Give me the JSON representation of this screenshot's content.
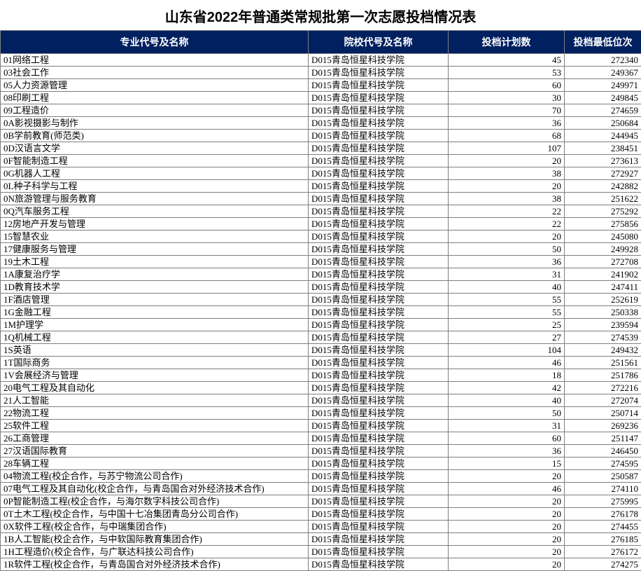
{
  "title": "山东省2022年普通类常规批第一次志愿投档情况表",
  "headers": {
    "major": "专业代号及名称",
    "school": "院校代号及名称",
    "plan": "投档计划数",
    "rank": "投档最低位次"
  },
  "school_name": "D015青岛恒星科技学院",
  "colors": {
    "header_bg": "#002060",
    "header_text": "#ffffff",
    "border": "#7f7f7f",
    "body_bg": "#ffffff",
    "text": "#000000"
  },
  "rows": [
    {
      "major": "01网络工程",
      "plan": 45,
      "rank": 272340
    },
    {
      "major": "03社会工作",
      "plan": 53,
      "rank": 249367
    },
    {
      "major": "05人力资源管理",
      "plan": 60,
      "rank": 249971
    },
    {
      "major": "08印刷工程",
      "plan": 30,
      "rank": 249845
    },
    {
      "major": "09工程造价",
      "plan": 70,
      "rank": 274659
    },
    {
      "major": "0A影视摄影与制作",
      "plan": 36,
      "rank": 250684
    },
    {
      "major": "0B学前教育(师范类)",
      "plan": 68,
      "rank": 244945
    },
    {
      "major": "0D汉语言文学",
      "plan": 107,
      "rank": 238451
    },
    {
      "major": "0F智能制造工程",
      "plan": 20,
      "rank": 273613
    },
    {
      "major": "0G机器人工程",
      "plan": 38,
      "rank": 272927
    },
    {
      "major": "0L种子科学与工程",
      "plan": 20,
      "rank": 242882
    },
    {
      "major": "0N旅游管理与服务教育",
      "plan": 38,
      "rank": 251622
    },
    {
      "major": "0Q汽车服务工程",
      "plan": 22,
      "rank": 275292
    },
    {
      "major": "12房地产开发与管理",
      "plan": 22,
      "rank": 275856
    },
    {
      "major": "15智慧农业",
      "plan": 20,
      "rank": 245080
    },
    {
      "major": "17健康服务与管理",
      "plan": 50,
      "rank": 249928
    },
    {
      "major": "19土木工程",
      "plan": 36,
      "rank": 272708
    },
    {
      "major": "1A康复治疗学",
      "plan": 31,
      "rank": 241902
    },
    {
      "major": "1D教育技术学",
      "plan": 40,
      "rank": 247411
    },
    {
      "major": "1F酒店管理",
      "plan": 55,
      "rank": 252619
    },
    {
      "major": "1G金融工程",
      "plan": 55,
      "rank": 250338
    },
    {
      "major": "1M护理学",
      "plan": 25,
      "rank": 239594
    },
    {
      "major": "1Q机械工程",
      "plan": 27,
      "rank": 274539
    },
    {
      "major": "1S英语",
      "plan": 104,
      "rank": 249432
    },
    {
      "major": "1T国际商务",
      "plan": 46,
      "rank": 251561
    },
    {
      "major": "1V会展经济与管理",
      "plan": 18,
      "rank": 251786
    },
    {
      "major": "20电气工程及其自动化",
      "plan": 42,
      "rank": 272216
    },
    {
      "major": "21人工智能",
      "plan": 40,
      "rank": 272074
    },
    {
      "major": "22物流工程",
      "plan": 50,
      "rank": 250714
    },
    {
      "major": "25软件工程",
      "plan": 31,
      "rank": 269236
    },
    {
      "major": "26工商管理",
      "plan": 60,
      "rank": 251147
    },
    {
      "major": "27汉语国际教育",
      "plan": 36,
      "rank": 246450
    },
    {
      "major": "28车辆工程",
      "plan": 15,
      "rank": 274595
    },
    {
      "major": "04物流工程(校企合作，与苏宁物流公司合作)",
      "plan": 20,
      "rank": 250587
    },
    {
      "major": "07电气工程及其自动化(校企合作，与青岛国合对外经济技术合作)",
      "plan": 46,
      "rank": 274110
    },
    {
      "major": "0P智能制造工程(校企合作，与海尔数字科技公司合作)",
      "plan": 20,
      "rank": 275995
    },
    {
      "major": "0T土木工程(校企合作，与中国十七冶集团青岛分公司合作)",
      "plan": 20,
      "rank": 276178
    },
    {
      "major": "0X软件工程(校企合作，与中瑞集团合作)",
      "plan": 20,
      "rank": 274455
    },
    {
      "major": "1B人工智能(校企合作，与中软国际教育集团合作)",
      "plan": 20,
      "rank": 276185
    },
    {
      "major": "1H工程造价(校企合作，与广联达科技公司合作)",
      "plan": 20,
      "rank": 276172
    },
    {
      "major": "1R软件工程(校企合作，与青岛国合对外经济技术合作)",
      "plan": 20,
      "rank": 274275
    }
  ]
}
